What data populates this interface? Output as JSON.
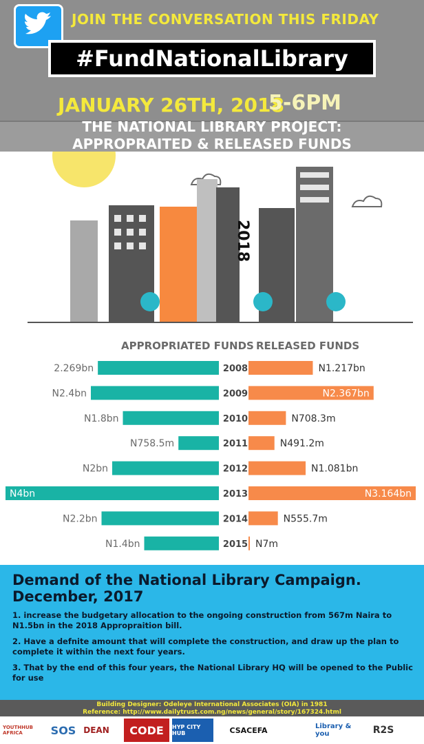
{
  "header": {
    "join_text": "JOIN THE CONVERSATION THIS FRIDAY",
    "hashtag": "#FundNationalLibrary",
    "date": "JANUARY 26TH, 2018",
    "time": "5-6PM",
    "project_line1": "THE NATIONAL LIBRARY PROJECT:",
    "project_line2": "APPROPRAITED & RELEASED FUNDS"
  },
  "illustration": {
    "year_label": "2018"
  },
  "chart_data": {
    "type": "bar",
    "categories": [
      "2008",
      "2009",
      "2010",
      "2011",
      "2012",
      "2013",
      "2014",
      "2015"
    ],
    "series": [
      {
        "name": "APPROPRIATED FUNDS",
        "values": [
          2.269,
          2.4,
          1.8,
          0.7585,
          2.0,
          4.0,
          2.2,
          1.4
        ],
        "labels": [
          "2.269bn",
          "N2.4bn",
          "N1.8bn",
          "N758.5m",
          "N2bn",
          "N4bn",
          "N2.2bn",
          "N1.4bn"
        ],
        "color": "#19b3a5"
      },
      {
        "name": "RELEASED FUNDS",
        "values": [
          1.217,
          2.367,
          0.7083,
          0.4912,
          1.081,
          3.164,
          0.5557,
          0.007
        ],
        "labels": [
          "N1.217bn",
          "N2.367bn",
          "N708.3m",
          "N491.2m",
          "N1.081bn",
          "N3.164bn",
          "N555.7m",
          "N7m"
        ],
        "color": "#f78a4a"
      }
    ],
    "unit": "billion naira"
  },
  "demand": {
    "title": "Demand of the National Library Campaign. December, 2017",
    "items": [
      "1. increase the budgetary allocation to the ongoing construction from 567m Naira to N1.5bn in the 2018 Appropraition bill.",
      "2. Have a defnite amount that will complete the construction, and draw up the plan to complete it within the next four years.",
      "3. That by the end of this four years, the National Library HQ will be opened to the Public for use"
    ]
  },
  "footer": {
    "designer": "Building Designer: Odeleye International Associates (OIA) in 1981",
    "reference": "Reference: http://www.dailytrust.com.ng/news/general/story/167324.html",
    "logos": [
      "YOUTHHUB AFRICA",
      "SOS",
      "DEAN",
      "CODE",
      "HYP CITY HUB",
      "CSACEFA",
      "Library & you",
      "R2S"
    ]
  },
  "colors": {
    "teal": "#19b3a5",
    "orange": "#f78a4a",
    "yellow": "#f4e93c",
    "blue": "#2bb7e8"
  }
}
